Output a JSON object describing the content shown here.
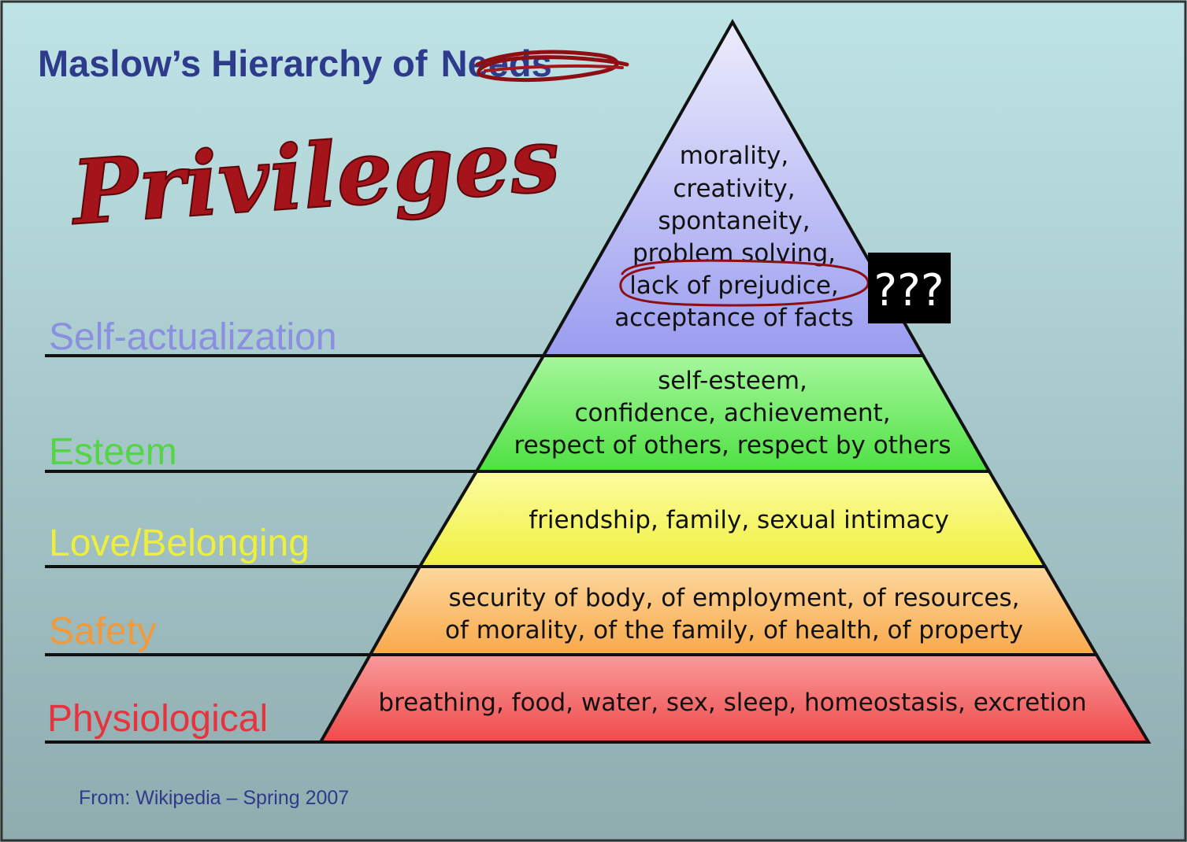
{
  "title": {
    "prefix": "Maslow’s Hierarchy of",
    "struck_word": "Needs"
  },
  "handwritten_replacement": "Privileges",
  "annotation": {
    "question_marks": "???"
  },
  "levels": [
    {
      "name": "Self-actualization",
      "label_color": "#8a8fe0",
      "fill": "#a9aaf2",
      "lines": [
        "morality,",
        "creativity,",
        "spontaneity,",
        "problem solving,",
        "lack of prejudice,",
        "acceptance of facts"
      ]
    },
    {
      "name": "Esteem",
      "label_color": "#55d44a",
      "fill": "#6cec5e",
      "lines": [
        "self-esteem,",
        "confidence, achievement,",
        "respect of others, respect by others"
      ]
    },
    {
      "name": "Love/Belonging",
      "label_color": "#eeee3c",
      "fill": "#f4f460",
      "lines": [
        "friendship, family, sexual intimacy"
      ]
    },
    {
      "name": "Safety",
      "label_color": "#f29a3a",
      "fill": "#fbbd68",
      "lines": [
        "security of body, of employment, of resources,",
        "of morality, of the family, of health, of property"
      ]
    },
    {
      "name": "Physiological",
      "label_color": "#e8323c",
      "fill": "#f46464",
      "lines": [
        "breathing, food, water, sex, sleep, homeostasis, excretion"
      ]
    }
  ],
  "source_note": "From: Wikipedia – Spring 2007"
}
